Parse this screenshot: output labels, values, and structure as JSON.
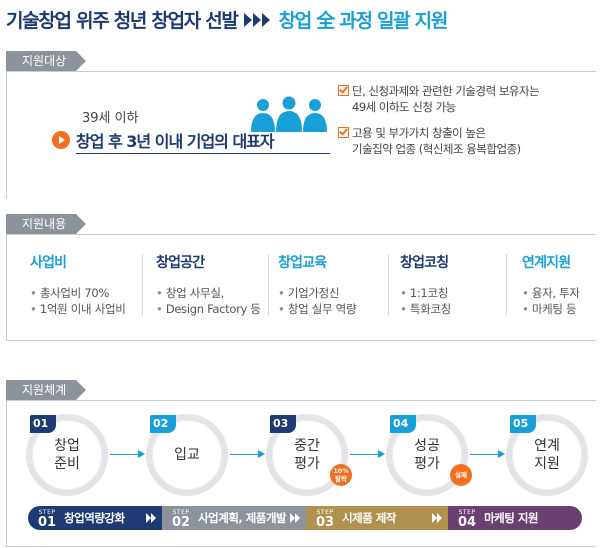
{
  "header": {
    "title": "기술창업 위주 청년 창업자 선발",
    "subtitle": "창업 全 과정 일괄 지원"
  },
  "target_section": {
    "tag": "지원대상",
    "age": "39세 이하",
    "ceo": "창업 후 3년 이내 기업의 대표자",
    "conditions": [
      {
        "line1": "단, 신청과제와 관련한 기술경력 보유자는",
        "line2": "49세 이하도 신청 가능"
      },
      {
        "line1": "고용 및 부가가치 창출이 높은",
        "line2": "기술집약 업종 (혁신제조 융복합업종)"
      }
    ]
  },
  "content_section": {
    "tag": "지원내용",
    "columns": [
      {
        "head": "사업비",
        "color": "#1aa0d8",
        "items": [
          "총사업비 70%",
          "1억원 이내 사업비"
        ]
      },
      {
        "head": "창업공간",
        "color": "#1d3a72",
        "items": [
          "창업 사무실,",
          "Design Factory 등"
        ]
      },
      {
        "head": "창업교육",
        "color": "#1aa0d8",
        "items": [
          "기업가정신",
          "창업 실무 역량"
        ]
      },
      {
        "head": "창업코칭",
        "color": "#1d3a72",
        "items": [
          "1:1코칭",
          "특화코칭"
        ]
      },
      {
        "head": "연계지원",
        "color": "#1aa0d8",
        "items": [
          "융자, 투자",
          "마케팅 등"
        ]
      }
    ]
  },
  "system_section": {
    "tag": "지원체계",
    "steps": [
      {
        "num": "01",
        "label1": "창업",
        "label2": "준비",
        "color": "#1d3a72"
      },
      {
        "num": "02",
        "label1": "입교",
        "label2": "",
        "color": "#1aa0d8"
      },
      {
        "num": "03",
        "label1": "중간",
        "label2": "평가",
        "color": "#1d3a72",
        "badge1": "10%",
        "badge2": "탈락",
        "badge_color": "#f36f1f"
      },
      {
        "num": "04",
        "label1": "성공",
        "label2": "평가",
        "color": "#1aa0d8",
        "badge1": "실패",
        "badge2": "",
        "badge_color": "#f36f1f"
      },
      {
        "num": "05",
        "label1": "연계",
        "label2": "지원",
        "color": "#1aa0d8"
      }
    ],
    "stepbars": [
      {
        "step_word": "STEP",
        "num": "01",
        "label": "창업역량강화",
        "color": "#1d3a72"
      },
      {
        "step_word": "STEP",
        "num": "02",
        "label": "사업계획, 제품개발",
        "color": "#8c939a"
      },
      {
        "step_word": "STEP",
        "num": "03",
        "label": "시제품 제작",
        "color": "#b0914f"
      },
      {
        "step_word": "STEP",
        "num": "04",
        "label": "마케팅 지원",
        "color": "#6b3f72"
      }
    ]
  }
}
